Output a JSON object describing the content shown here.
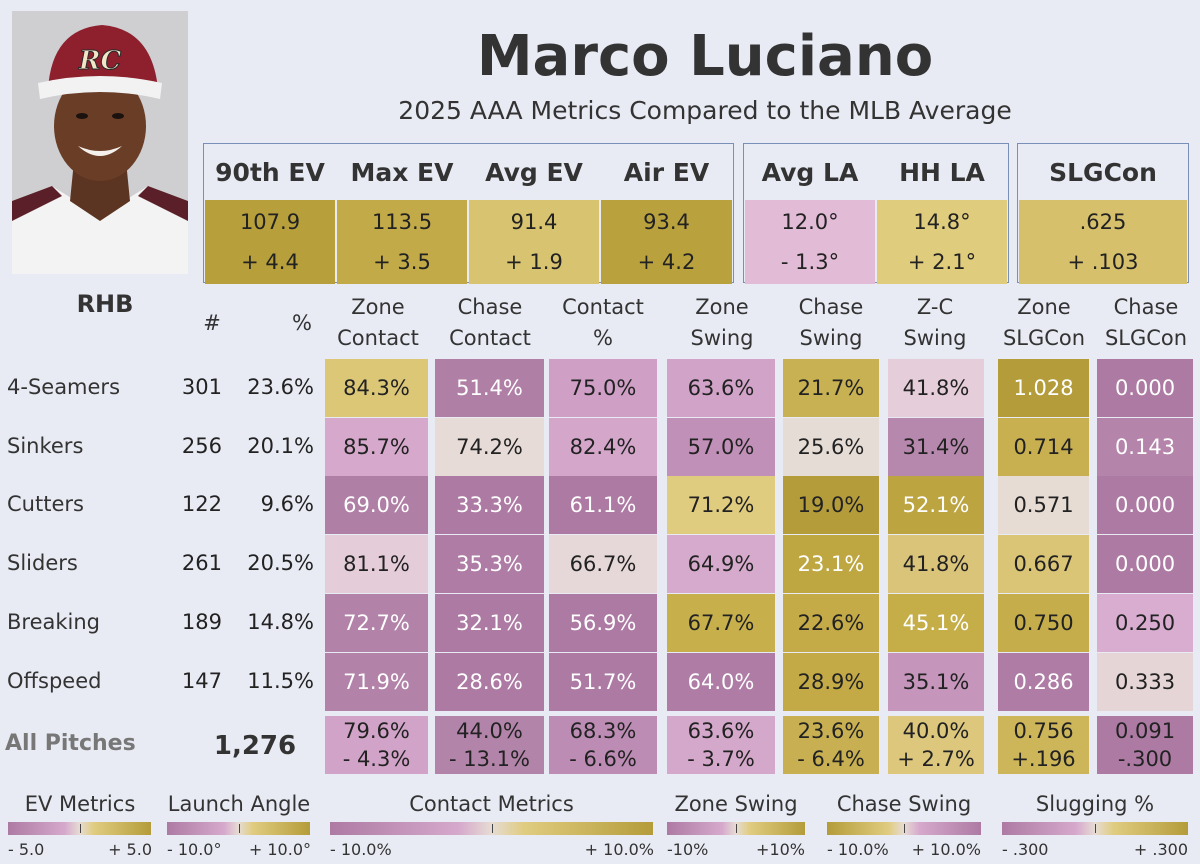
{
  "player": {
    "name": "Marco Luciano",
    "subtitle": "2025 AAA Metrics Compared to the MLB Average",
    "hand": "RHB",
    "cap_logo": "RC"
  },
  "metric_groups": [
    {
      "items": [
        {
          "label": "90th EV",
          "value": "107.9",
          "diff": "+ 4.4",
          "color": "#b7a03b"
        },
        {
          "label": "Max EV",
          "value": "113.5",
          "diff": "+ 3.5",
          "color": "#c2aa48"
        },
        {
          "label": "Avg EV",
          "value": "91.4",
          "diff": "+ 1.9",
          "color": "#d8c370"
        },
        {
          "label": "Air EV",
          "value": "93.4",
          "diff": "+ 4.2",
          "color": "#b9a23e"
        }
      ]
    },
    {
      "items": [
        {
          "label": "Avg LA",
          "value": "12.0°",
          "diff": "- 1.3°",
          "color": "#e2bcd6"
        },
        {
          "label": "HH LA",
          "value": "14.8°",
          "diff": "+ 2.1°",
          "color": "#e0cc7d"
        }
      ]
    },
    {
      "items": [
        {
          "label": "SLGCon",
          "value": ".625",
          "diff": "+ .103",
          "color": "#d6c06c"
        }
      ]
    }
  ],
  "table": {
    "count_header": "#",
    "pct_header": "%",
    "columns": [
      {
        "line1": "Zone",
        "line2": "Contact"
      },
      {
        "line1": "Chase",
        "line2": "Contact"
      },
      {
        "line1": "Contact",
        "line2": "%"
      },
      {
        "line1": "Zone",
        "line2": "Swing"
      },
      {
        "line1": "Chase",
        "line2": "Swing"
      },
      {
        "line1": "Z-C",
        "line2": "Swing"
      },
      {
        "line1": "Zone",
        "line2": "SLGCon"
      },
      {
        "line1": "Chase",
        "line2": "SLGCon"
      }
    ],
    "rows": [
      {
        "label": "4-Seamers",
        "count": "301",
        "pct": "23.6%",
        "cells": [
          {
            "v": "84.3%",
            "c": "#dcc777",
            "t": "#222"
          },
          {
            "v": "51.4%",
            "c": "#b07fa6",
            "t": "#fff"
          },
          {
            "v": "75.0%",
            "c": "#cf9fc6",
            "t": "#222"
          },
          {
            "v": "63.6%",
            "c": "#d1a3c8",
            "t": "#222"
          },
          {
            "v": "21.7%",
            "c": "#c8b152",
            "t": "#222"
          },
          {
            "v": "41.8%",
            "c": "#e5ced9",
            "t": "#222"
          },
          {
            "v": "1.028",
            "c": "#b49c3a",
            "t": "#fff"
          },
          {
            "v": "0.000",
            "c": "#ad7aa3",
            "t": "#fff"
          }
        ]
      },
      {
        "label": "Sinkers",
        "count": "256",
        "pct": "20.1%",
        "cells": [
          {
            "v": "85.7%",
            "c": "#d6a9cc",
            "t": "#222"
          },
          {
            "v": "74.2%",
            "c": "#e6dbd6",
            "t": "#222"
          },
          {
            "v": "82.4%",
            "c": "#d3a6ca",
            "t": "#222"
          },
          {
            "v": "57.0%",
            "c": "#c090b8",
            "t": "#222"
          },
          {
            "v": "25.6%",
            "c": "#e5dcd6",
            "t": "#222"
          },
          {
            "v": "31.4%",
            "c": "#b788ae",
            "t": "#222"
          },
          {
            "v": "0.714",
            "c": "#c8b050",
            "t": "#222"
          },
          {
            "v": "0.143",
            "c": "#b584ab",
            "t": "#fff"
          }
        ]
      },
      {
        "label": "Cutters",
        "count": "122",
        "pct": "9.6%",
        "cells": [
          {
            "v": "69.0%",
            "c": "#b07fa6",
            "t": "#fff"
          },
          {
            "v": "33.3%",
            "c": "#ad7aa3",
            "t": "#fff"
          },
          {
            "v": "61.1%",
            "c": "#ad7aa3",
            "t": "#fff"
          },
          {
            "v": "71.2%",
            "c": "#e0cc7f",
            "t": "#222"
          },
          {
            "v": "19.0%",
            "c": "#b49c3a",
            "t": "#222"
          },
          {
            "v": "52.1%",
            "c": "#bca440",
            "t": "#fff"
          },
          {
            "v": "0.571",
            "c": "#e6dcd4",
            "t": "#222"
          },
          {
            "v": "0.000",
            "c": "#ad7aa3",
            "t": "#fff"
          }
        ]
      },
      {
        "label": "Sliders",
        "count": "261",
        "pct": "20.5%",
        "cells": [
          {
            "v": "81.1%",
            "c": "#e4cdd9",
            "t": "#222"
          },
          {
            "v": "35.3%",
            "c": "#ae7ca4",
            "t": "#fff"
          },
          {
            "v": "66.7%",
            "c": "#e6d8d9",
            "t": "#222"
          },
          {
            "v": "64.9%",
            "c": "#d6aacc",
            "t": "#222"
          },
          {
            "v": "23.1%",
            "c": "#bea641",
            "t": "#fff"
          },
          {
            "v": "41.8%",
            "c": "#dac47a",
            "t": "#222"
          },
          {
            "v": "0.667",
            "c": "#dac577",
            "t": "#222"
          },
          {
            "v": "0.000",
            "c": "#ad7aa3",
            "t": "#fff"
          }
        ]
      },
      {
        "label": "Breaking",
        "count": "189",
        "pct": "14.8%",
        "cells": [
          {
            "v": "72.7%",
            "c": "#b282a9",
            "t": "#fff"
          },
          {
            "v": "32.1%",
            "c": "#ad7aa3",
            "t": "#fff"
          },
          {
            "v": "56.9%",
            "c": "#ad7aa3",
            "t": "#fff"
          },
          {
            "v": "67.7%",
            "c": "#c7b04c",
            "t": "#222"
          },
          {
            "v": "22.6%",
            "c": "#c4ab48",
            "t": "#222"
          },
          {
            "v": "45.1%",
            "c": "#c5ad48",
            "t": "#fff"
          },
          {
            "v": "0.750",
            "c": "#c5ad4b",
            "t": "#222"
          },
          {
            "v": "0.250",
            "c": "#d8add0",
            "t": "#222"
          }
        ]
      },
      {
        "label": "Offspeed",
        "count": "147",
        "pct": "11.5%",
        "cells": [
          {
            "v": "71.9%",
            "c": "#b282a9",
            "t": "#fff"
          },
          {
            "v": "28.6%",
            "c": "#ad7aa3",
            "t": "#fff"
          },
          {
            "v": "51.7%",
            "c": "#ad7aa3",
            "t": "#fff"
          },
          {
            "v": "64.0%",
            "c": "#ae7ca4",
            "t": "#fff"
          },
          {
            "v": "28.9%",
            "c": "#c3aa47",
            "t": "#222"
          },
          {
            "v": "35.1%",
            "c": "#c595bc",
            "t": "#222"
          },
          {
            "v": "0.286",
            "c": "#ae7ca4",
            "t": "#fff"
          },
          {
            "v": "0.333",
            "c": "#e5d5d6",
            "t": "#222"
          }
        ]
      }
    ],
    "totals": {
      "label": "All Pitches",
      "count": "1,276",
      "cells": [
        {
          "v": "79.6%",
          "d": "- 4.3%",
          "c": "#d1a3c8"
        },
        {
          "v": "44.0%",
          "d": "- 13.1%",
          "c": "#b384aa"
        },
        {
          "v": "68.3%",
          "d": "- 6.6%",
          "c": "#bd8cb4"
        },
        {
          "v": "63.6%",
          "d": "- 3.7%",
          "c": "#d4a8ca"
        },
        {
          "v": "23.6%",
          "d": "- 6.4%",
          "c": "#c8b052"
        },
        {
          "v": "40.0%",
          "d": "+ 2.7%",
          "c": "#dcc77d"
        },
        {
          "v": "0.756",
          "d": "+.196",
          "c": "#cdb55a"
        },
        {
          "v": "0.091",
          "d": "-.300",
          "c": "#ad7aa3"
        }
      ]
    }
  },
  "legends": [
    {
      "title": "EV Metrics",
      "min": "- 5.0",
      "max": "+ 5.0",
      "gradient": "pink-to-gold"
    },
    {
      "title": "Launch Angle",
      "min": "- 10.0°",
      "max": "+ 10.0°",
      "gradient": "pink-to-gold"
    },
    {
      "title": "Contact Metrics",
      "min": "- 10.0%",
      "max": "+ 10.0%",
      "gradient": "pink-to-gold"
    },
    {
      "title": "Zone Swing",
      "min": "-10%",
      "max": "+10%",
      "gradient": "pink-to-gold"
    },
    {
      "title": "Chase Swing",
      "min": "- 10.0%",
      "max": "+ 10.0%",
      "gradient": "gold-to-pink"
    },
    {
      "title": "Slugging %",
      "min": "- .300",
      "max": "+ .300",
      "gradient": "pink-to-gold"
    }
  ],
  "colors": {
    "pink_dark": "#ad7aa3",
    "neutral": "#e6dcd4",
    "gold_dark": "#b49c3a",
    "box_border": "#7a8fb8",
    "background": "#e8ebf4"
  }
}
